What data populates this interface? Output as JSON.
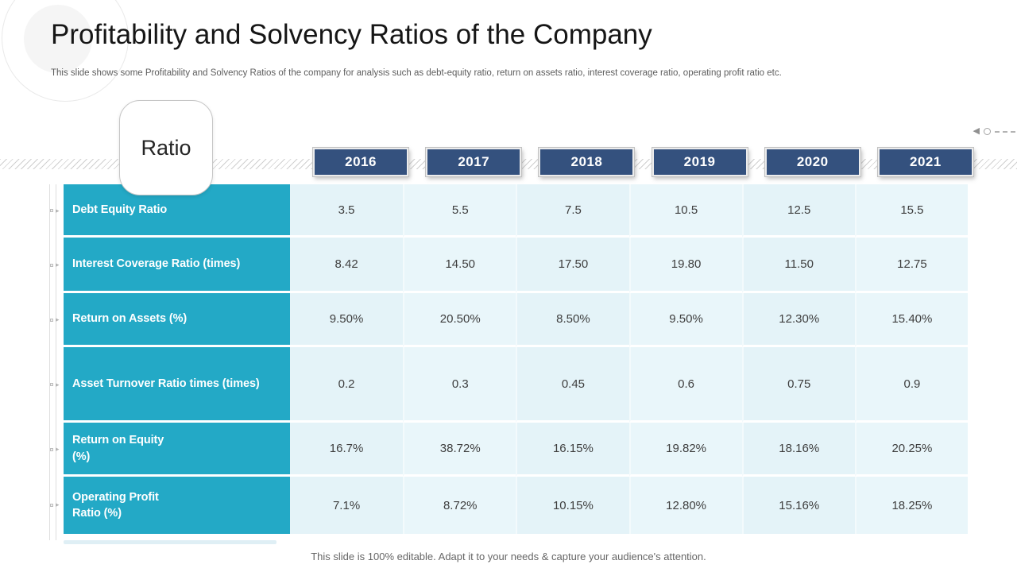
{
  "header": {
    "title": "Profitability and Solvency Ratios of the Company",
    "subtitle": "This slide shows some Profitability and Solvency Ratios of the company for analysis such as debt-equity ratio, return on assets ratio, interest coverage ratio, operating profit ratio etc."
  },
  "chart_data": {
    "type": "table",
    "corner_label": "Ratio",
    "columns": [
      "2016",
      "2017",
      "2018",
      "2019",
      "2020",
      "2021"
    ],
    "rows": [
      {
        "label": "Debt Equity Ratio",
        "values": [
          "3.5",
          "5.5",
          "7.5",
          "10.5",
          "12.5",
          "15.5"
        ]
      },
      {
        "label": "Interest Coverage Ratio (times)",
        "values": [
          "8.42",
          "14.50",
          "17.50",
          "19.80",
          "11.50",
          "12.75"
        ]
      },
      {
        "label": "Return on Assets (%)",
        "values": [
          "9.50%",
          "20.50%",
          "8.50%",
          "9.50%",
          "12.30%",
          "15.40%"
        ]
      },
      {
        "label": "Asset Turnover Ratio times (times)",
        "values": [
          "0.2",
          "0.3",
          "0.45",
          "0.6",
          "0.75",
          "0.9"
        ]
      },
      {
        "label": "Return on Equity\n(%)",
        "values": [
          "16.7%",
          "38.72%",
          "16.15%",
          "19.82%",
          "18.16%",
          "20.25%"
        ]
      },
      {
        "label": "Operating Profit\nRatio (%)",
        "values": [
          "7.1%",
          "8.72%",
          "10.15%",
          "12.80%",
          "15.16%",
          "18.25%"
        ]
      }
    ]
  },
  "footer": {
    "text": "This slide is 100% editable. Adapt it to your needs & capture your audience's attention."
  },
  "colors": {
    "teal": "#23a9c6",
    "navy": "#34517e",
    "cell_light_blue": "#e4f3f8",
    "hatch_gray": "#cfcfcf"
  },
  "icons": {
    "top_right": "back-triangle-circle-dashes",
    "row_bullet": "square-and-arrow"
  }
}
